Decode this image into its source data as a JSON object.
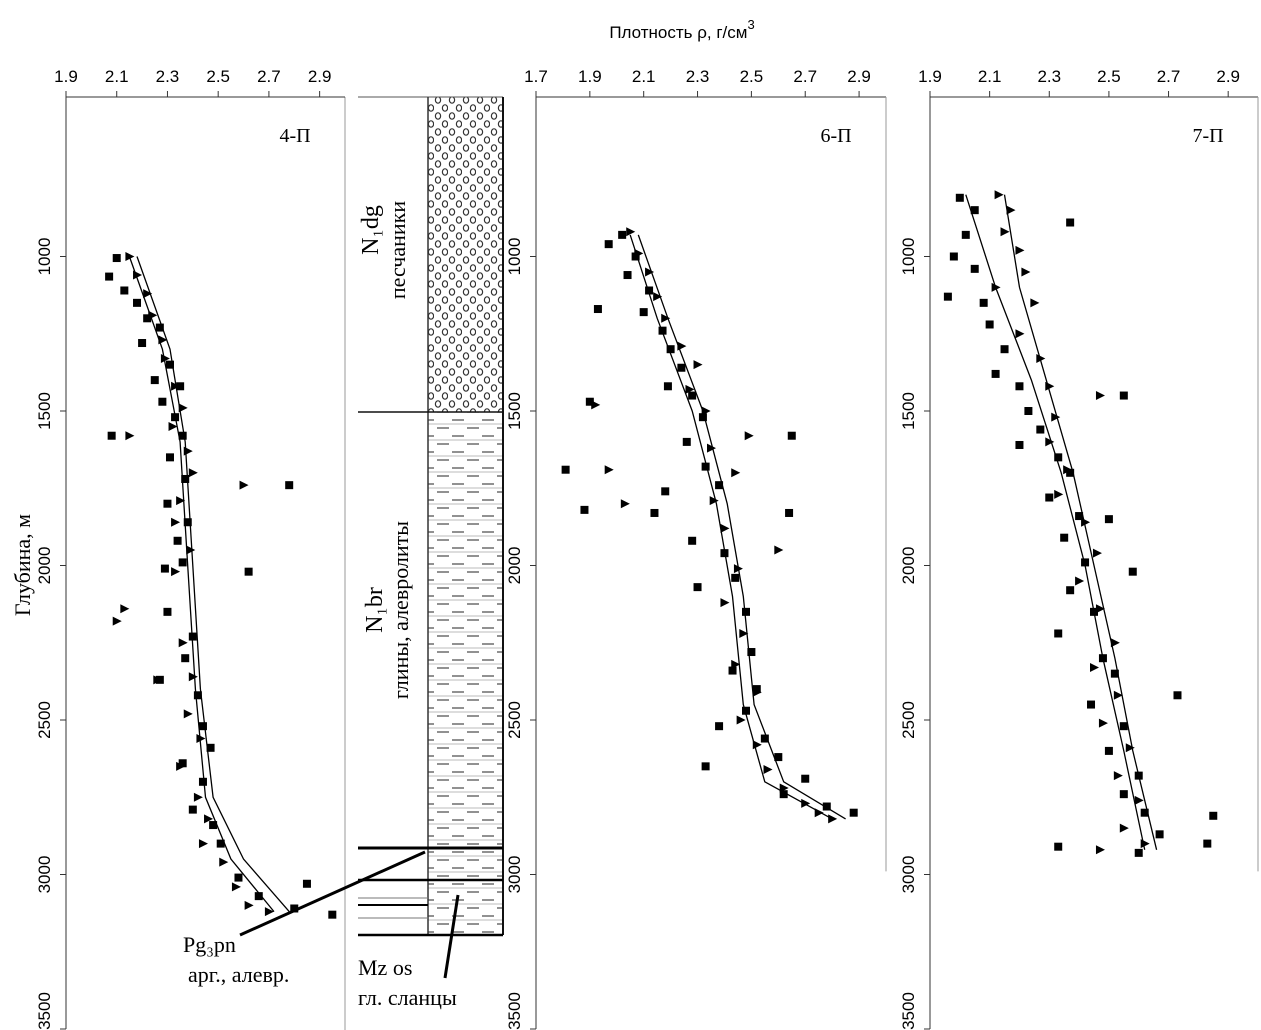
{
  "x_label": "Плотность ρ, г/см",
  "x_label_sup": "3",
  "y_label": "Глубина, м",
  "lithology": {
    "upper_index": "N₁dg",
    "upper_name": "песчаники",
    "middle_index": "N₁br",
    "middle_name": "глины, алевролиты",
    "pg_index": "Pg₃pn",
    "pg_name": "арг., алевр.",
    "mz_index": "Mz os",
    "mz_name": "гл. сланцы"
  },
  "chart_data": [
    {
      "type": "scatter",
      "title": "4-П",
      "xlim": [
        1.9,
        3.0
      ],
      "ylim": [
        500,
        3500
      ],
      "xticks": [
        1.9,
        2.1,
        2.3,
        2.5,
        2.7,
        2.9
      ],
      "yticks": [
        1000,
        1500,
        2000,
        2500,
        3000,
        3500
      ],
      "series": [
        {
          "marker": "square",
          "color": "#000000",
          "x": [
            2.1,
            2.07,
            2.13,
            2.18,
            2.22,
            2.27,
            2.2,
            2.31,
            2.25,
            2.35,
            2.28,
            2.33,
            2.36,
            2.08,
            2.31,
            2.37,
            2.78,
            2.3,
            2.38,
            2.34,
            2.36,
            2.62,
            2.29,
            2.3,
            2.4,
            2.37,
            2.27,
            2.42,
            2.44,
            2.47,
            2.36,
            2.44,
            2.4,
            2.48,
            2.51,
            2.58,
            2.66,
            2.85,
            2.8,
            2.95
          ],
          "values": [
            1005,
            1065,
            1110,
            1150,
            1200,
            1230,
            1280,
            1350,
            1400,
            1420,
            1470,
            1520,
            1580,
            1580,
            1650,
            1720,
            1740,
            1800,
            1860,
            1920,
            1990,
            2020,
            2010,
            2150,
            2230,
            2300,
            2370,
            2420,
            2520,
            2590,
            2640,
            2700,
            2790,
            2840,
            2900,
            3010,
            3070,
            3030,
            3110,
            3130
          ]
        },
        {
          "marker": "triangle",
          "color": "#000000",
          "x": [
            2.15,
            2.18,
            2.22,
            2.24,
            2.28,
            2.29,
            2.33,
            2.36,
            2.32,
            2.15,
            2.38,
            2.4,
            2.35,
            2.6,
            2.33,
            2.39,
            2.33,
            2.13,
            2.1,
            2.36,
            2.4,
            2.26,
            2.38,
            2.43,
            2.35,
            2.42,
            2.46,
            2.44,
            2.52,
            2.57,
            2.62,
            2.7
          ],
          "values": [
            1000,
            1060,
            1120,
            1190,
            1270,
            1330,
            1420,
            1490,
            1550,
            1580,
            1630,
            1700,
            1790,
            1740,
            1860,
            1950,
            2020,
            2140,
            2180,
            2250,
            2360,
            2370,
            2480,
            2560,
            2650,
            2750,
            2820,
            2900,
            2960,
            3040,
            3100,
            3120
          ]
        }
      ],
      "trend_lines": [
        {
          "color": "#000000",
          "x": [
            2.15,
            2.28,
            2.35,
            2.38,
            2.41,
            2.45,
            2.55,
            2.72
          ],
          "values": [
            1000,
            1300,
            1600,
            2000,
            2400,
            2750,
            2950,
            3120
          ]
        },
        {
          "color": "#000000",
          "x": [
            2.18,
            2.31,
            2.37,
            2.4,
            2.43,
            2.48,
            2.6,
            2.78
          ],
          "values": [
            1000,
            1300,
            1600,
            2000,
            2400,
            2750,
            2950,
            3120
          ]
        }
      ]
    },
    {
      "type": "scatter",
      "title": "6-П",
      "xlim": [
        1.7,
        3.0
      ],
      "ylim": [
        500,
        3500
      ],
      "xticks": [
        1.7,
        1.9,
        2.1,
        2.3,
        2.5,
        2.7,
        2.9
      ],
      "yticks": [
        1000,
        1500,
        2000,
        2500,
        3000,
        3500
      ],
      "series": [
        {
          "marker": "square",
          "color": "#000000",
          "x": [
            2.02,
            1.97,
            2.07,
            2.04,
            2.12,
            1.93,
            2.1,
            2.17,
            2.2,
            2.24,
            2.19,
            2.28,
            1.9,
            2.32,
            2.26,
            2.65,
            1.81,
            2.33,
            2.18,
            2.38,
            1.88,
            2.14,
            2.64,
            2.28,
            2.4,
            2.44,
            2.3,
            2.48,
            2.5,
            2.43,
            2.52,
            2.48,
            2.38,
            2.55,
            2.6,
            2.33,
            2.7,
            2.62,
            2.78,
            2.88
          ],
          "values": [
            930,
            960,
            1000,
            1060,
            1110,
            1170,
            1180,
            1240,
            1300,
            1360,
            1420,
            1450,
            1470,
            1520,
            1600,
            1580,
            1690,
            1680,
            1760,
            1740,
            1820,
            1830,
            1830,
            1920,
            1960,
            2040,
            2070,
            2150,
            2280,
            2340,
            2400,
            2470,
            2520,
            2560,
            2620,
            2650,
            2690,
            2740,
            2780,
            2800
          ]
        },
        {
          "marker": "triangle",
          "color": "#000000",
          "x": [
            2.05,
            2.08,
            2.12,
            2.15,
            2.18,
            2.24,
            2.3,
            2.27,
            2.33,
            1.92,
            2.49,
            2.35,
            1.97,
            2.44,
            2.36,
            2.03,
            2.6,
            2.4,
            2.45,
            2.4,
            2.47,
            2.44,
            2.52,
            2.46,
            2.52,
            2.56,
            2.62,
            2.7,
            2.75,
            2.8
          ],
          "values": [
            920,
            990,
            1050,
            1130,
            1200,
            1290,
            1350,
            1430,
            1500,
            1480,
            1580,
            1620,
            1690,
            1700,
            1790,
            1800,
            1950,
            1880,
            2010,
            2120,
            2220,
            2320,
            2410,
            2500,
            2580,
            2660,
            2720,
            2770,
            2800,
            2820
          ]
        }
      ],
      "trend_lines": [
        {
          "color": "#000000",
          "x": [
            2.05,
            2.15,
            2.28,
            2.37,
            2.43,
            2.47,
            2.55,
            2.8
          ],
          "values": [
            930,
            1200,
            1500,
            1800,
            2100,
            2450,
            2700,
            2820
          ]
        },
        {
          "color": "#000000",
          "x": [
            2.08,
            2.19,
            2.32,
            2.41,
            2.47,
            2.51,
            2.62,
            2.85
          ],
          "values": [
            930,
            1200,
            1500,
            1800,
            2100,
            2450,
            2700,
            2820
          ]
        }
      ]
    },
    {
      "type": "scatter",
      "title": "7-П",
      "xlim": [
        1.9,
        3.0
      ],
      "ylim": [
        500,
        3500
      ],
      "xticks": [
        1.9,
        2.1,
        2.3,
        2.5,
        2.7,
        2.9
      ],
      "yticks": [
        1000,
        1500,
        2000,
        2500,
        3000,
        3500
      ],
      "series": [
        {
          "marker": "square",
          "color": "#000000",
          "x": [
            2.0,
            2.05,
            2.37,
            2.02,
            1.98,
            2.05,
            1.96,
            2.08,
            2.1,
            2.15,
            2.12,
            2.2,
            2.55,
            2.23,
            2.27,
            2.2,
            2.33,
            2.37,
            2.3,
            2.4,
            2.5,
            2.35,
            2.42,
            2.58,
            2.37,
            2.45,
            2.33,
            2.48,
            2.52,
            2.73,
            2.44,
            2.55,
            2.5,
            2.6,
            2.55,
            2.62,
            2.85,
            2.67,
            2.6,
            2.33,
            2.83
          ],
          "values": [
            810,
            850,
            890,
            930,
            1000,
            1040,
            1130,
            1150,
            1220,
            1300,
            1380,
            1420,
            1450,
            1500,
            1560,
            1610,
            1650,
            1700,
            1780,
            1840,
            1850,
            1910,
            1990,
            2020,
            2080,
            2150,
            2220,
            2300,
            2350,
            2420,
            2450,
            2520,
            2600,
            2680,
            2740,
            2800,
            2810,
            2870,
            2930,
            2910,
            2900
          ]
        },
        {
          "marker": "triangle",
          "color": "#000000",
          "x": [
            2.13,
            2.17,
            2.15,
            2.2,
            2.22,
            2.12,
            2.25,
            2.2,
            2.27,
            2.3,
            2.47,
            2.32,
            2.3,
            2.36,
            2.33,
            2.42,
            2.46,
            2.4,
            2.47,
            2.52,
            2.45,
            2.53,
            2.48,
            2.57,
            2.53,
            2.6,
            2.55,
            2.47,
            2.62
          ],
          "values": [
            800,
            850,
            920,
            980,
            1050,
            1100,
            1150,
            1250,
            1330,
            1420,
            1450,
            1520,
            1600,
            1690,
            1770,
            1860,
            1960,
            2050,
            2140,
            2250,
            2330,
            2420,
            2510,
            2590,
            2680,
            2760,
            2850,
            2920,
            2900
          ]
        }
      ],
      "trend_lines": [
        {
          "color": "#000000",
          "x": [
            2.02,
            2.12,
            2.24,
            2.34,
            2.42,
            2.48,
            2.55,
            2.62
          ],
          "values": [
            800,
            1100,
            1400,
            1700,
            2000,
            2300,
            2600,
            2920
          ]
        },
        {
          "color": "#000000",
          "x": [
            2.15,
            2.2,
            2.29,
            2.38,
            2.45,
            2.52,
            2.58,
            2.66
          ],
          "values": [
            800,
            1100,
            1400,
            1700,
            2000,
            2300,
            2600,
            2920
          ]
        }
      ]
    }
  ]
}
